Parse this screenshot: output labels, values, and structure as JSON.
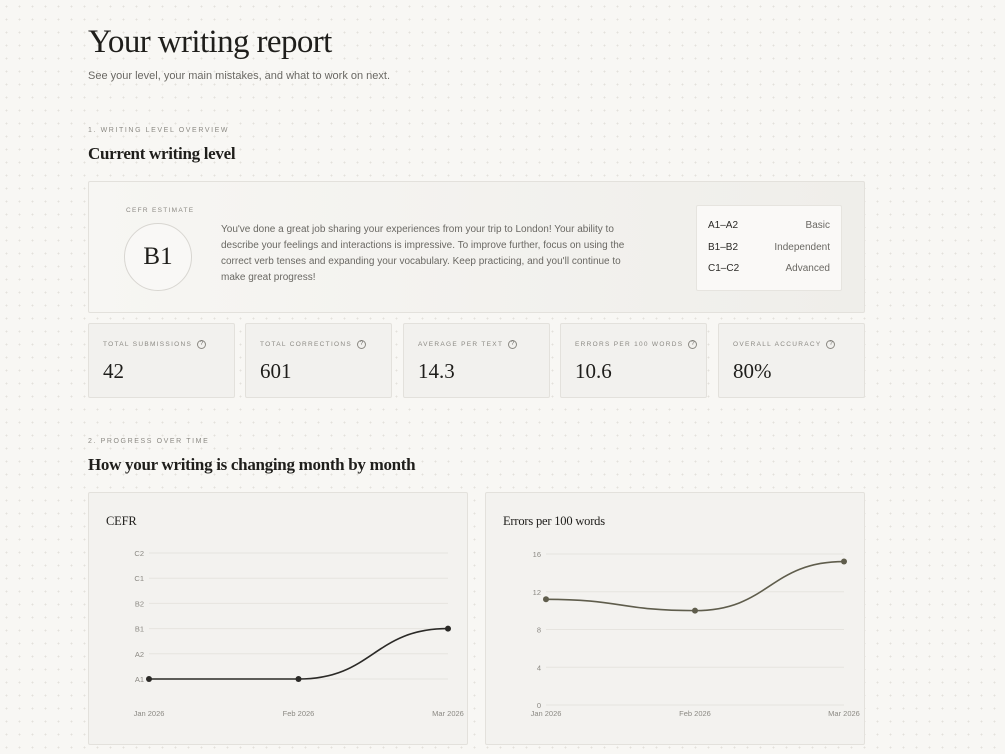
{
  "header": {
    "title": "Your writing report",
    "subtitle": "See your level, your main mistakes, and what to work on next."
  },
  "section1": {
    "eyebrow": "1. WRITING LEVEL OVERVIEW",
    "title": "Current writing level",
    "cefr_label": "CEFR ESTIMATE",
    "level": "B1",
    "feedback": "You've done a great job sharing your experiences from your trip to London! Your ability to describe your feelings and interactions is impressive. To improve further, focus on using the correct verb tenses and expanding your vocabulary. Keep practicing, and you'll continue to make great progress!",
    "bands": [
      {
        "range": "A1–A2",
        "name": "Basic"
      },
      {
        "range": "B1–B2",
        "name": "Independent"
      },
      {
        "range": "C1–C2",
        "name": "Advanced"
      }
    ]
  },
  "stats": [
    {
      "label": "TOTAL SUBMISSIONS",
      "value": "42"
    },
    {
      "label": "TOTAL CORRECTIONS",
      "value": "601"
    },
    {
      "label": "AVERAGE PER TEXT",
      "value": "14.3"
    },
    {
      "label": "ERRORS PER 100 WORDS",
      "value": "10.6"
    },
    {
      "label": "OVERALL ACCURACY",
      "value": "80%"
    }
  ],
  "help_glyph": "?",
  "section2": {
    "eyebrow": "2. PROGRESS OVER TIME",
    "title": "How your writing is changing month by month"
  },
  "chart_data": [
    {
      "type": "line",
      "title": "CEFR",
      "categories": [
        "Jan 2026",
        "Feb 2026",
        "Mar 2026"
      ],
      "y_levels": [
        "A1",
        "A2",
        "B1",
        "B2",
        "C1",
        "C2"
      ],
      "values": [
        "A1",
        "A1",
        "B1"
      ],
      "grid": true,
      "color": "#2b2a27"
    },
    {
      "type": "line",
      "title": "Errors per 100 words",
      "categories": [
        "Jan 2026",
        "Feb 2026",
        "Mar 2026"
      ],
      "y_ticks": [
        0,
        4,
        8,
        12,
        16
      ],
      "ylim": [
        0,
        16
      ],
      "values": [
        11.2,
        10.0,
        15.2
      ],
      "grid": true,
      "color": "#5f5d4c"
    }
  ]
}
